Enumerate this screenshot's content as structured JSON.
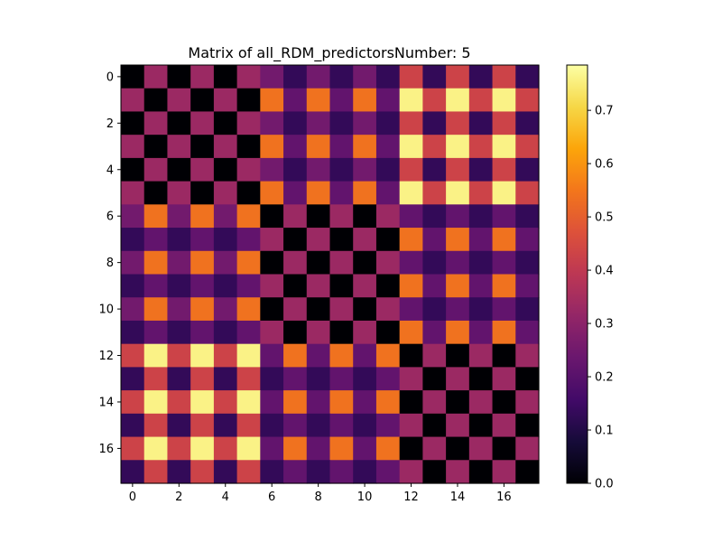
{
  "chart_data": {
    "type": "heatmap",
    "title": "Matrix of all_RDM_predictorsNumber: 5",
    "xlabel": "",
    "ylabel": "",
    "colormap": "inferno",
    "vmin": 0.0,
    "vmax": 0.785,
    "x_ticks": [
      "0",
      "2",
      "4",
      "6",
      "8",
      "10",
      "12",
      "14",
      "16"
    ],
    "y_ticks": [
      "0",
      "2",
      "4",
      "6",
      "8",
      "10",
      "12",
      "14",
      "16"
    ],
    "colorbar_ticks": [
      "0.0",
      "0.1",
      "0.2",
      "0.3",
      "0.4",
      "0.5",
      "0.6",
      "0.7"
    ],
    "colorbar_values": [
      0.0,
      0.1,
      0.2,
      0.3,
      0.4,
      0.5,
      0.6,
      0.7
    ],
    "matrix": [
      [
        0.0,
        0.33,
        0.0,
        0.33,
        0.0,
        0.33,
        0.25,
        0.13,
        0.25,
        0.13,
        0.25,
        0.13,
        0.43,
        0.13,
        0.43,
        0.13,
        0.43,
        0.13
      ],
      [
        0.33,
        0.0,
        0.33,
        0.0,
        0.33,
        0.0,
        0.54,
        0.22,
        0.54,
        0.22,
        0.54,
        0.22,
        0.76,
        0.43,
        0.76,
        0.43,
        0.76,
        0.43
      ],
      [
        0.0,
        0.33,
        0.0,
        0.33,
        0.0,
        0.33,
        0.25,
        0.13,
        0.25,
        0.13,
        0.25,
        0.13,
        0.43,
        0.13,
        0.43,
        0.13,
        0.43,
        0.13
      ],
      [
        0.33,
        0.0,
        0.33,
        0.0,
        0.33,
        0.0,
        0.54,
        0.22,
        0.54,
        0.22,
        0.54,
        0.22,
        0.76,
        0.43,
        0.76,
        0.43,
        0.76,
        0.43
      ],
      [
        0.0,
        0.33,
        0.0,
        0.33,
        0.0,
        0.33,
        0.25,
        0.13,
        0.25,
        0.13,
        0.25,
        0.13,
        0.43,
        0.13,
        0.43,
        0.13,
        0.43,
        0.13
      ],
      [
        0.33,
        0.0,
        0.33,
        0.0,
        0.33,
        0.0,
        0.54,
        0.22,
        0.54,
        0.22,
        0.54,
        0.22,
        0.76,
        0.43,
        0.76,
        0.43,
        0.76,
        0.43
      ],
      [
        0.25,
        0.54,
        0.25,
        0.54,
        0.25,
        0.54,
        0.0,
        0.33,
        0.0,
        0.33,
        0.0,
        0.33,
        0.22,
        0.13,
        0.22,
        0.13,
        0.22,
        0.13
      ],
      [
        0.13,
        0.22,
        0.13,
        0.22,
        0.13,
        0.22,
        0.33,
        0.0,
        0.33,
        0.0,
        0.33,
        0.0,
        0.54,
        0.22,
        0.54,
        0.22,
        0.54,
        0.22
      ],
      [
        0.25,
        0.54,
        0.25,
        0.54,
        0.25,
        0.54,
        0.0,
        0.33,
        0.0,
        0.33,
        0.0,
        0.33,
        0.22,
        0.13,
        0.22,
        0.13,
        0.22,
        0.13
      ],
      [
        0.13,
        0.22,
        0.13,
        0.22,
        0.13,
        0.22,
        0.33,
        0.0,
        0.33,
        0.0,
        0.33,
        0.0,
        0.54,
        0.22,
        0.54,
        0.22,
        0.54,
        0.22
      ],
      [
        0.25,
        0.54,
        0.25,
        0.54,
        0.25,
        0.54,
        0.0,
        0.33,
        0.0,
        0.33,
        0.0,
        0.33,
        0.22,
        0.13,
        0.22,
        0.13,
        0.22,
        0.13
      ],
      [
        0.13,
        0.22,
        0.13,
        0.22,
        0.13,
        0.22,
        0.33,
        0.0,
        0.33,
        0.0,
        0.33,
        0.0,
        0.54,
        0.22,
        0.54,
        0.22,
        0.54,
        0.22
      ],
      [
        0.43,
        0.76,
        0.43,
        0.76,
        0.43,
        0.76,
        0.22,
        0.54,
        0.22,
        0.54,
        0.22,
        0.54,
        0.0,
        0.33,
        0.0,
        0.33,
        0.0,
        0.33
      ],
      [
        0.13,
        0.43,
        0.13,
        0.43,
        0.13,
        0.43,
        0.13,
        0.22,
        0.13,
        0.22,
        0.13,
        0.22,
        0.33,
        0.0,
        0.33,
        0.0,
        0.33,
        0.0
      ],
      [
        0.43,
        0.76,
        0.43,
        0.76,
        0.43,
        0.76,
        0.22,
        0.54,
        0.22,
        0.54,
        0.22,
        0.54,
        0.0,
        0.33,
        0.0,
        0.33,
        0.0,
        0.33
      ],
      [
        0.13,
        0.43,
        0.13,
        0.43,
        0.13,
        0.43,
        0.13,
        0.22,
        0.13,
        0.22,
        0.13,
        0.22,
        0.33,
        0.0,
        0.33,
        0.0,
        0.33,
        0.0
      ],
      [
        0.43,
        0.76,
        0.43,
        0.76,
        0.43,
        0.76,
        0.22,
        0.54,
        0.22,
        0.54,
        0.22,
        0.54,
        0.0,
        0.33,
        0.0,
        0.33,
        0.0,
        0.33
      ],
      [
        0.13,
        0.43,
        0.13,
        0.43,
        0.13,
        0.43,
        0.13,
        0.22,
        0.13,
        0.22,
        0.13,
        0.22,
        0.33,
        0.0,
        0.33,
        0.0,
        0.33,
        0.0
      ]
    ]
  }
}
